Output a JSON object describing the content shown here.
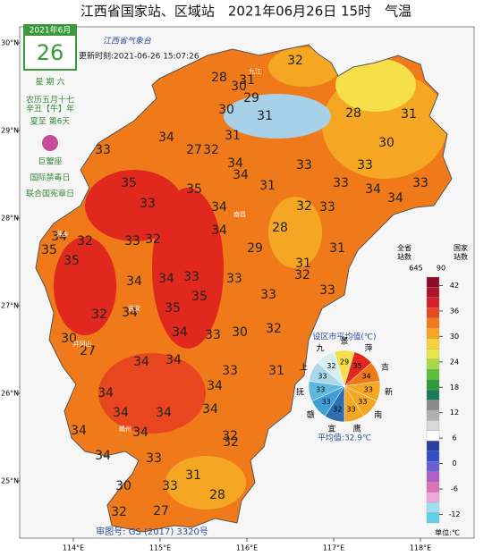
{
  "header": {
    "title": "江西省国家站、区域站　2021年06月26日 15时　气温",
    "update": "更新时刻:2021-06-26 15:07:26",
    "logo": "江西省气象台"
  },
  "calendar": {
    "month": "2021年6月",
    "day": "26",
    "lines": [
      "星 期 六",
      "农历五月十七",
      "辛丑【牛】年",
      "夏至 第6天",
      "巨蟹座",
      "国际禁毒日",
      "联合国宪章日"
    ]
  },
  "lon_ticks": [
    {
      "value": 114,
      "label": "114°E"
    },
    {
      "value": 115,
      "label": "115°E"
    },
    {
      "value": 116,
      "label": "116°E"
    },
    {
      "value": 117,
      "label": "117°E"
    },
    {
      "value": 118,
      "label": "118°E"
    }
  ],
  "lat_ticks": [
    {
      "value": 30,
      "label": "30°N"
    },
    {
      "value": 29,
      "label": "29°N"
    },
    {
      "value": 28,
      "label": "28°N"
    },
    {
      "value": 27,
      "label": "27°N"
    },
    {
      "value": 26,
      "label": "26°N"
    },
    {
      "value": 25,
      "label": "25°N"
    }
  ],
  "stations": {
    "values": [
      32,
      28,
      30,
      31,
      29,
      30,
      31,
      31,
      28,
      34,
      31,
      27,
      32,
      30,
      33,
      34,
      34,
      33,
      33,
      35,
      35,
      31,
      34,
      33,
      33,
      33,
      32,
      33,
      34,
      34,
      28,
      34,
      35,
      32,
      33,
      32,
      34,
      29,
      31,
      35,
      31,
      34,
      34,
      33,
      33,
      35,
      32,
      33,
      32,
      34,
      35,
      33,
      30,
      30,
      34,
      33,
      32,
      27,
      34,
      34,
      33,
      31,
      34,
      34,
      34,
      34,
      34,
      32,
      34,
      34,
      33,
      34,
      31,
      32,
      28,
      30,
      33,
      27,
      32
    ]
  },
  "places": [
    "九江",
    "南昌",
    "萍乡",
    "吉安",
    "井冈山",
    "赣州"
  ],
  "map_note": "审图号: GS (2017) 3320号",
  "city_average": {
    "title": "设区市平均值(℃)",
    "mean": "平均值:32.9℃",
    "items": [
      {
        "name": "景",
        "value": 29,
        "color": "#f5e04a"
      },
      {
        "name": "萍",
        "value": 35,
        "color": "#e0281e"
      },
      {
        "name": "吉",
        "value": 34,
        "color": "#f07a1a"
      },
      {
        "name": "新",
        "value": 33,
        "color": "#f5a623"
      },
      {
        "name": "南",
        "value": 33,
        "color": "#f5a623"
      },
      {
        "name": "鹰",
        "value": 33,
        "color": "#f5a623"
      },
      {
        "name": "宜",
        "value": 32,
        "color": "#2f6fb0"
      },
      {
        "name": "赣",
        "value": 33,
        "color": "#3fa0d8"
      },
      {
        "name": "抚",
        "value": 33,
        "color": "#5fb8e0"
      },
      {
        "name": "上",
        "value": 33,
        "color": "#a8d8ea"
      },
      {
        "name": "九",
        "value": 32,
        "color": "#d8eef5"
      }
    ]
  },
  "legend": {
    "province_label": "全省\n站数",
    "province_count": "645",
    "national_label": "国家\n站数",
    "national_count": "90",
    "unit": "单位:℃",
    "range": [
      -14,
      44
    ],
    "ticks": [
      42,
      36,
      30,
      24,
      18,
      12,
      6,
      0,
      -6,
      -12
    ],
    "colors": [
      "#8b0a2a",
      "#b3122e",
      "#d8202a",
      "#e84a1f",
      "#f07a1a",
      "#f5a623",
      "#f7d23a",
      "#e6e84a",
      "#a8d84a",
      "#5cbf3a",
      "#2e9a3a",
      "#1a7a5a",
      "#8a8a8a",
      "#b0b0b0",
      "#d8d8d8",
      "#ffffff",
      "#2a3fa0",
      "#3050c8",
      "#6a5fd0",
      "#b060c8",
      "#e070b8",
      "#f0a8d8",
      "#a0e0f0",
      "#60d0e8"
    ]
  }
}
